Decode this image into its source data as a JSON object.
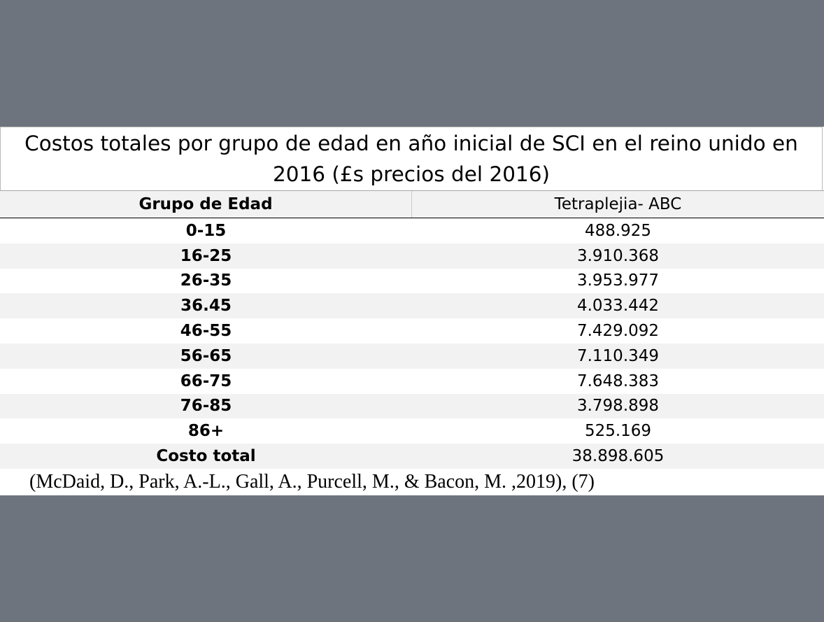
{
  "title": "Costos totales por grupo de edad en año inicial de SCI en el reino unido en 2016 (£s precios del 2016)",
  "table": {
    "headers": [
      "Grupo de Edad",
      "Tetraplejia- ABC"
    ],
    "rows": [
      {
        "group": "0-15",
        "value": "488.925"
      },
      {
        "group": "16-25",
        "value": "3.910.368"
      },
      {
        "group": "26-35",
        "value": "3.953.977"
      },
      {
        "group": "36.45",
        "value": "4.033.442"
      },
      {
        "group": "46-55",
        "value": "7.429.092"
      },
      {
        "group": "56-65",
        "value": "7.110.349"
      },
      {
        "group": "66-75",
        "value": "7.648.383"
      },
      {
        "group": "76-85",
        "value": "3.798.898"
      },
      {
        "group": "86+",
        "value": "525.169"
      },
      {
        "group": "Costo total",
        "value": "38.898.605"
      }
    ]
  },
  "citation": "(McDaid, D., Park, A.-L., Gall, A., Purcell, M., & Bacon, M. ,2019), (7)"
}
